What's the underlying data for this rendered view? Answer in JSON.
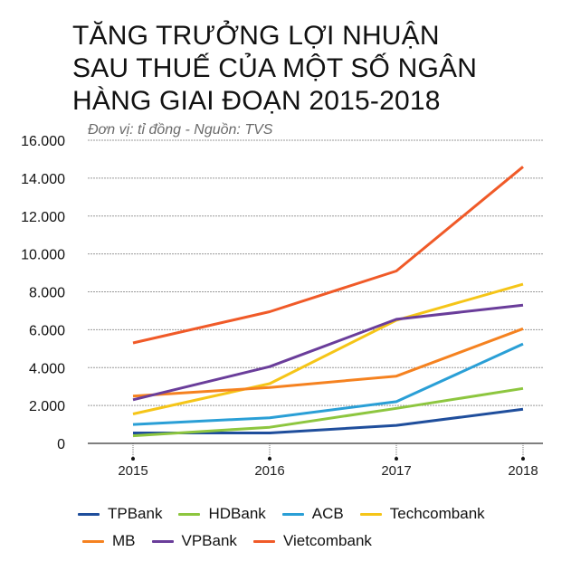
{
  "title": {
    "line1": "TĂNG TRƯỞNG LỢI NHUẬN",
    "line2": "SAU THUẾ CỦA MỘT SỐ NGÂN",
    "line3": "HÀNG GIAI ĐOẠN 2015-2018"
  },
  "subtitle": "Đơn vị: tỉ đồng  -  Nguồn: TVS",
  "legend": {
    "row1": [
      {
        "label": "TPBank",
        "color": "#1f4e9c"
      },
      {
        "label": "HDBank",
        "color": "#8dc63f"
      },
      {
        "label": "ACB",
        "color": "#2a9fd6"
      },
      {
        "label": "Techcombank",
        "color": "#f5c518"
      }
    ],
    "row2": [
      {
        "label": "MB",
        "color": "#f58220"
      },
      {
        "label": "VPBank",
        "color": "#6a3d9a"
      },
      {
        "label": "Vietcombank",
        "color": "#f05a28"
      }
    ]
  },
  "chart_data": {
    "type": "line",
    "title": "TĂNG TRƯỞNG LỢI NHUẬN SAU THUẾ CỦA MỘT SỐ NGÂN HÀNG GIAI ĐOẠN 2015-2018",
    "subtitle": "Đơn vị: tỉ đồng - Nguồn: TVS",
    "xlabel": "",
    "ylabel": "",
    "x": [
      "2015",
      "2016",
      "2017",
      "2018"
    ],
    "ylim": [
      0,
      16000
    ],
    "yticks": [
      0,
      2000,
      4000,
      6000,
      8000,
      10000,
      12000,
      14000,
      16000
    ],
    "ytick_labels": [
      "0",
      "2.000",
      "4.000",
      "6.000",
      "8.000",
      "10.000",
      "12.000",
      "14.000",
      "16.000"
    ],
    "grid": "horizontal dotted",
    "legend_position": "bottom",
    "series": [
      {
        "name": "TPBank",
        "color": "#1f4e9c",
        "values": [
          550,
          550,
          950,
          1800
        ]
      },
      {
        "name": "HDBank",
        "color": "#8dc63f",
        "values": [
          400,
          850,
          1850,
          2900
        ]
      },
      {
        "name": "ACB",
        "color": "#2a9fd6",
        "values": [
          1000,
          1350,
          2200,
          5250
        ]
      },
      {
        "name": "Techcombank",
        "color": "#f5c518",
        "values": [
          1550,
          3150,
          6500,
          8400
        ]
      },
      {
        "name": "MB",
        "color": "#f58220",
        "values": [
          2500,
          2950,
          3550,
          6050
        ]
      },
      {
        "name": "VPBank",
        "color": "#6a3d9a",
        "values": [
          2300,
          4050,
          6550,
          7300
        ]
      },
      {
        "name": "Vietcombank",
        "color": "#f05a28",
        "values": [
          5300,
          6950,
          9100,
          14600
        ]
      }
    ]
  }
}
